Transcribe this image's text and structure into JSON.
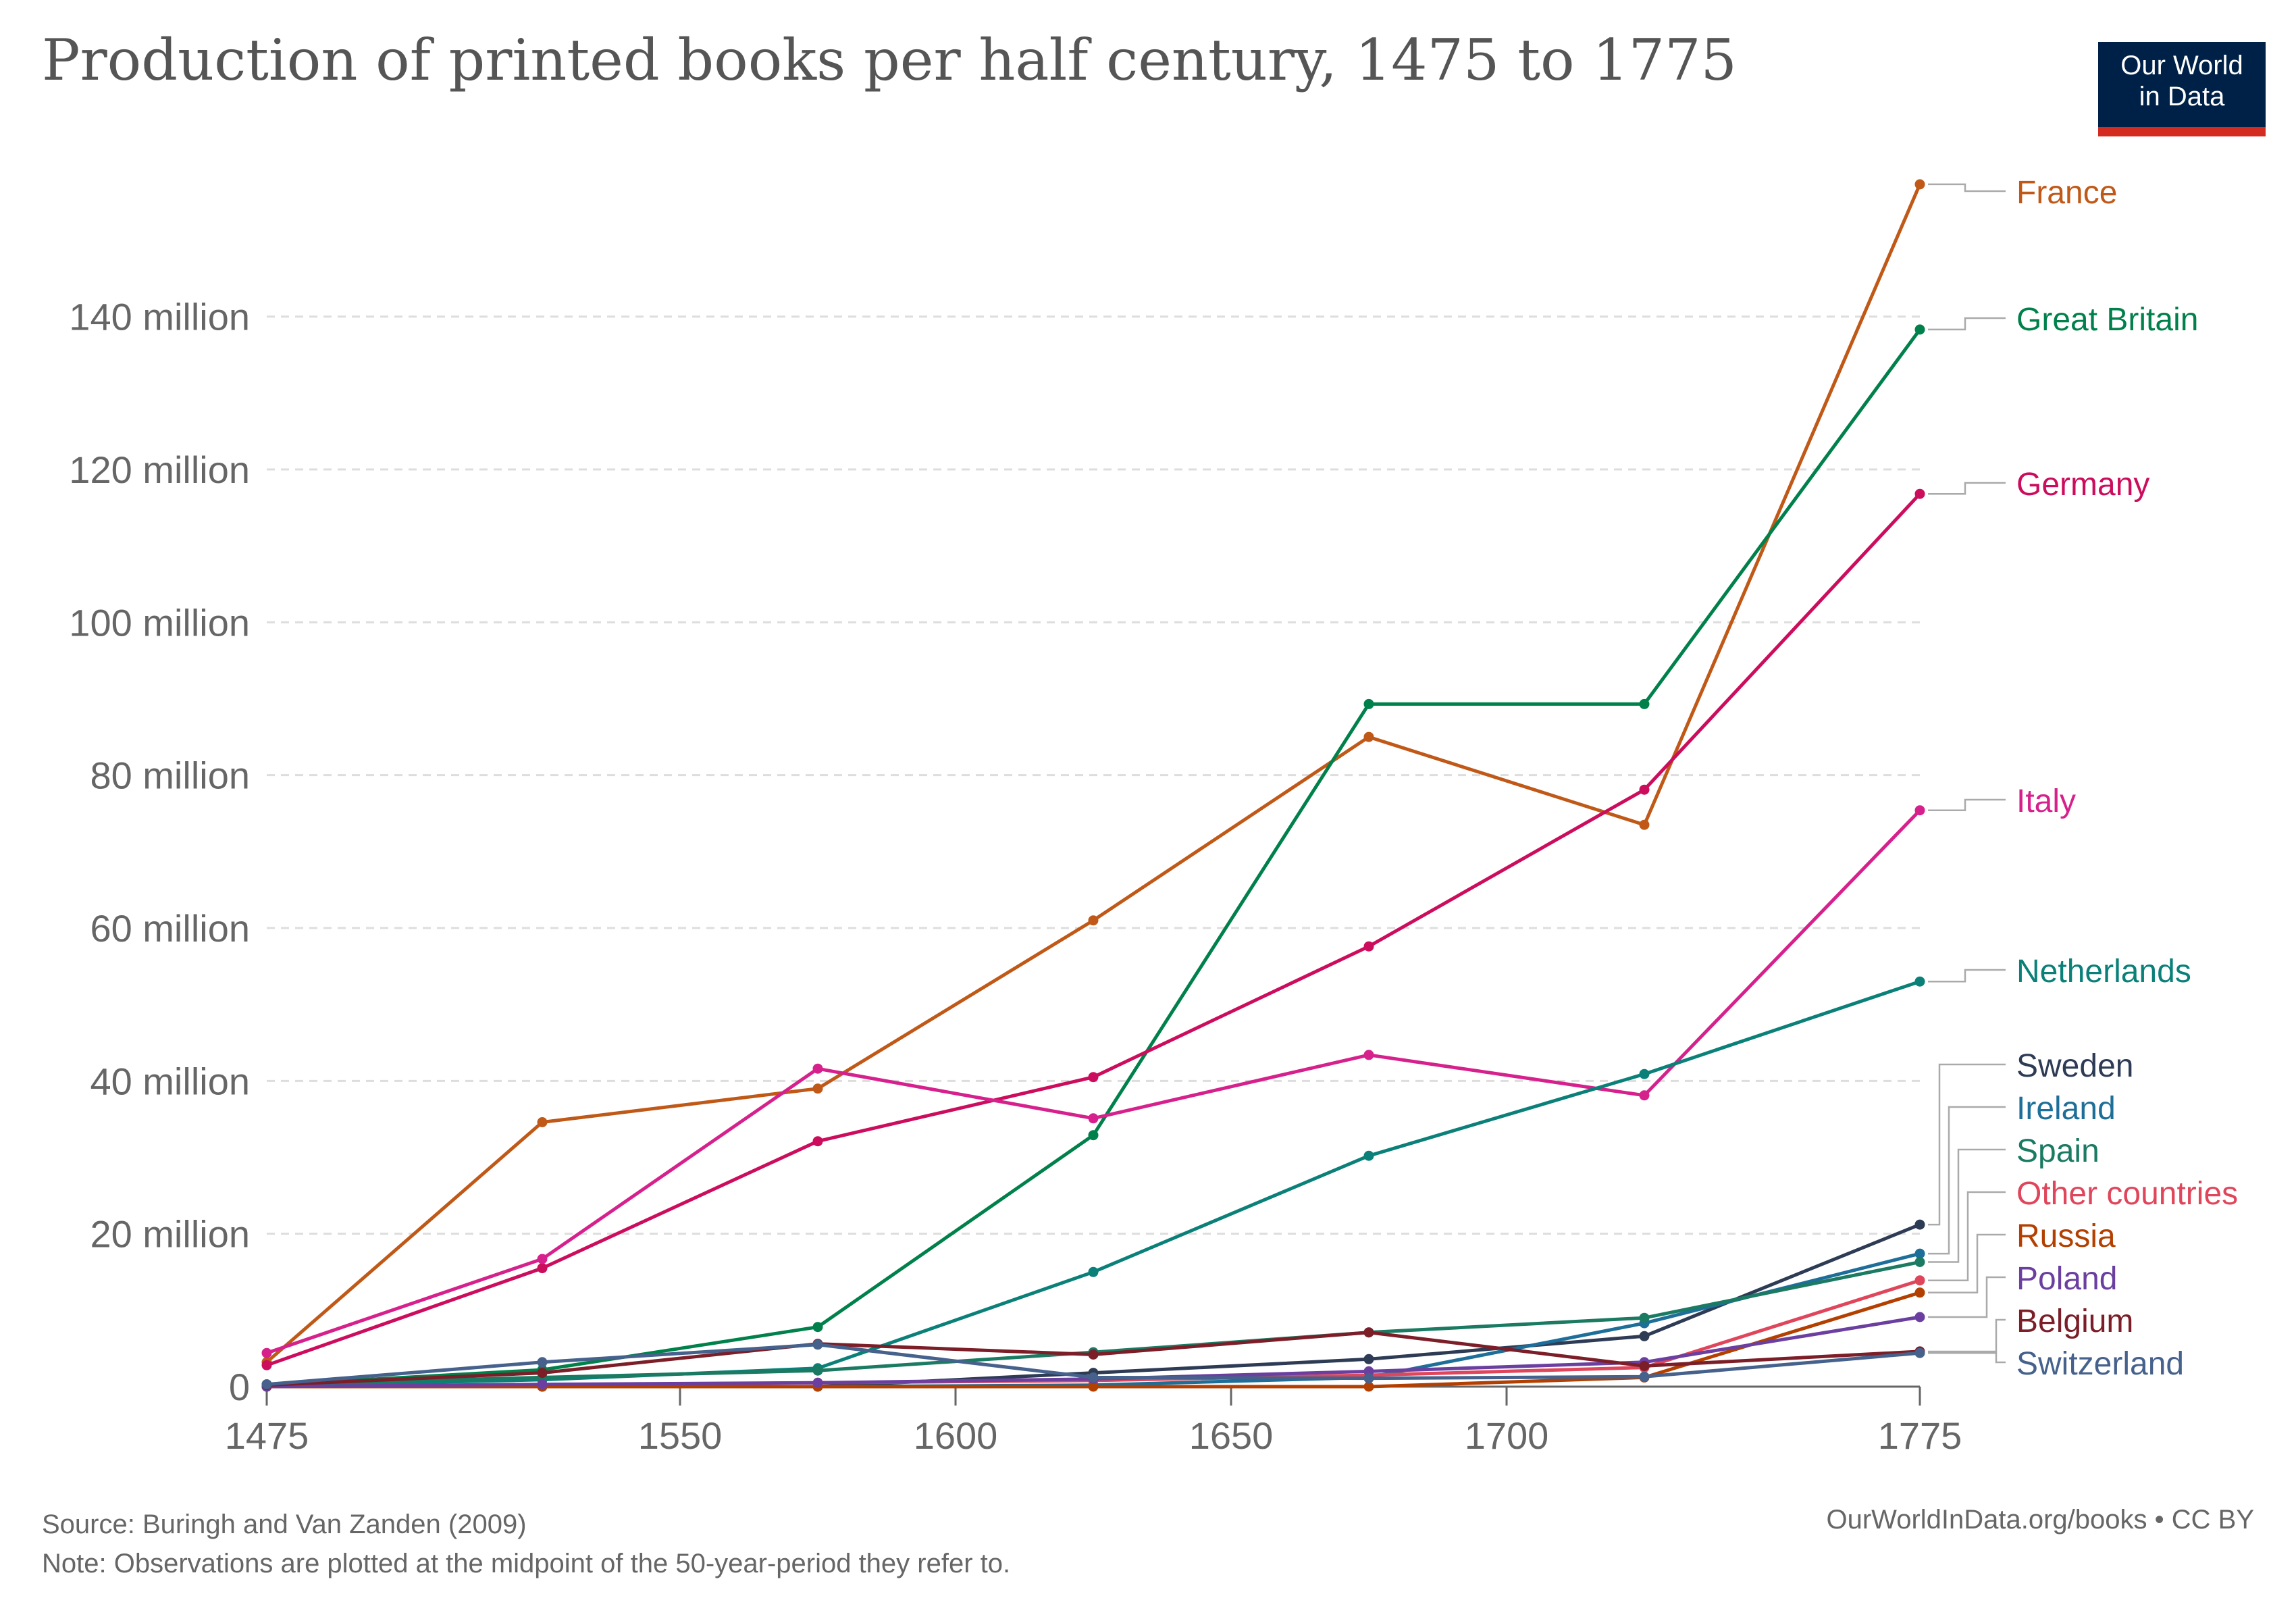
{
  "title": "Production of printed books per half century, 1475 to 1775",
  "logo": {
    "line1": "Our World",
    "line2": "in Data",
    "bg": "#002147",
    "accent": "#d42b21"
  },
  "footer": {
    "source": "Source: Buringh and Van Zanden (2009)",
    "note": "Note: Observations are plotted at the midpoint of the 50-year-period they refer to.",
    "right": "OurWorldInData.org/books • CC BY"
  },
  "chart_data": {
    "type": "line",
    "title": "Production of printed books per half century, 1475 to 1775",
    "x": [
      1475,
      1525,
      1575,
      1625,
      1675,
      1725,
      1775
    ],
    "x_ticks": [
      1475,
      1550,
      1600,
      1650,
      1700,
      1775
    ],
    "y_ticks": [
      0,
      20,
      40,
      60,
      80,
      100,
      120,
      140
    ],
    "y_tick_labels": [
      "0",
      "20 million",
      "40 million",
      "60 million",
      "80 million",
      "100 million",
      "120 million",
      "140 million"
    ],
    "xlim": [
      1475,
      1775
    ],
    "ylim": [
      0,
      158
    ],
    "y_unit": "million",
    "grid": "horizontal dashed",
    "legend": "right, labels at line ends",
    "series": [
      {
        "name": "France",
        "color": "#c05917",
        "values": [
          3.2,
          34.6,
          39.0,
          61.0,
          85.0,
          73.5,
          157.3
        ]
      },
      {
        "name": "Great Britain",
        "color": "#00804a",
        "values": [
          0.2,
          2.2,
          7.8,
          32.9,
          89.3,
          89.3,
          138.3
        ]
      },
      {
        "name": "Germany",
        "color": "#cc0c5c",
        "values": [
          2.8,
          15.5,
          32.1,
          40.5,
          57.6,
          78.1,
          116.8
        ]
      },
      {
        "name": "Italy",
        "color": "#d6218d",
        "values": [
          4.4,
          16.7,
          41.6,
          35.1,
          43.4,
          38.1,
          75.4
        ]
      },
      {
        "name": "Netherlands",
        "color": "#0a8079",
        "values": [
          0.1,
          0.9,
          2.4,
          15.0,
          30.2,
          40.9,
          53.0
        ]
      },
      {
        "name": "Sweden",
        "color": "#2d3b55",
        "values": [
          0.0,
          0.0,
          0.0,
          1.8,
          3.6,
          6.6,
          21.2
        ]
      },
      {
        "name": "Ireland",
        "color": "#1d6e98",
        "values": [
          0.0,
          0.0,
          0.0,
          0.2,
          1.2,
          8.3,
          17.4
        ]
      },
      {
        "name": "Spain",
        "color": "#1b7a62",
        "values": [
          0.3,
          1.2,
          2.1,
          4.5,
          7.1,
          9.0,
          16.3
        ]
      },
      {
        "name": "Other countries",
        "color": "#e0465b",
        "values": [
          0.0,
          0.2,
          0.5,
          0.8,
          1.5,
          2.5,
          13.9
        ]
      },
      {
        "name": "Russia",
        "color": "#b34000",
        "values": [
          0.0,
          0.0,
          0.0,
          0.0,
          0.0,
          1.2,
          12.3
        ]
      },
      {
        "name": "Poland",
        "color": "#6b3fa0",
        "values": [
          0.0,
          0.3,
          0.5,
          1.0,
          2.0,
          3.2,
          9.1
        ]
      },
      {
        "name": "Belgium",
        "color": "#7b1e28",
        "values": [
          0.2,
          1.8,
          5.6,
          4.2,
          7.1,
          2.7,
          4.6
        ]
      },
      {
        "name": "Switzerland",
        "color": "#45618c",
        "values": [
          0.3,
          3.2,
          5.5,
          1.2,
          1.1,
          1.3,
          4.4
        ]
      }
    ]
  }
}
